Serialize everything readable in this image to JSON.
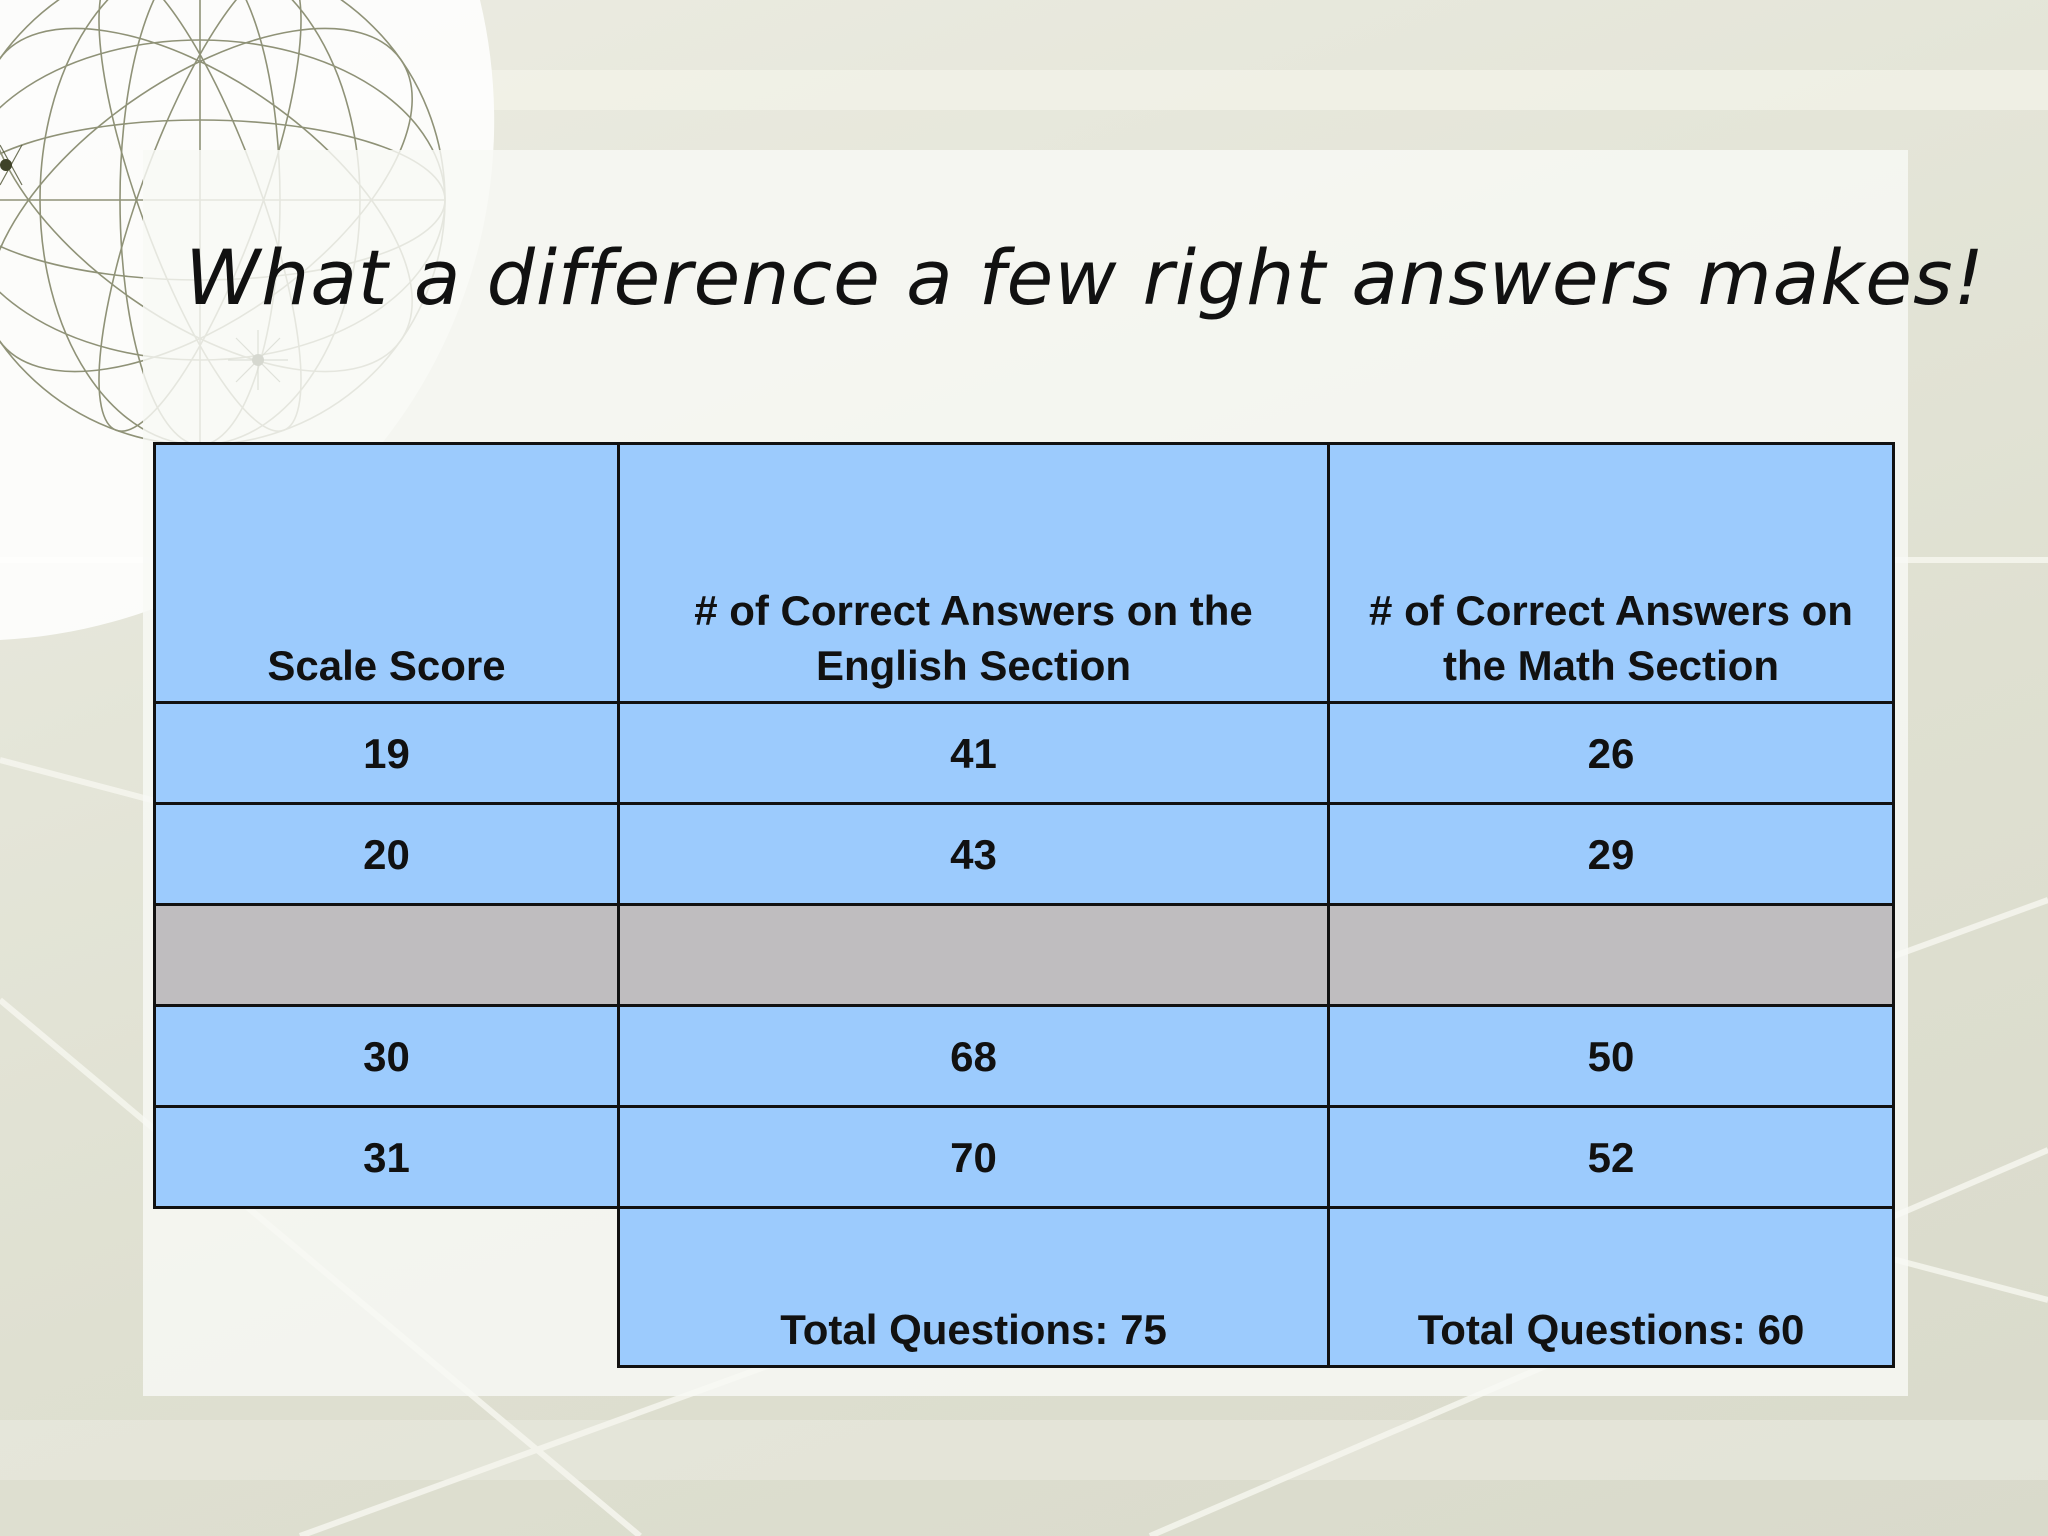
{
  "slide": {
    "title": "What a difference a few right answers makes!"
  },
  "table": {
    "headers": [
      "Scale Score",
      "# of Correct Answers on the English Section",
      "# of Correct Answers on the Math Section"
    ],
    "rows": [
      [
        "19",
        "41",
        "26"
      ],
      [
        "20",
        "43",
        "29"
      ],
      [
        "",
        "",
        ""
      ],
      [
        "30",
        "68",
        "50"
      ],
      [
        "31",
        "70",
        "52"
      ]
    ],
    "totals": [
      "Total Questions: 75",
      "Total Questions: 60"
    ],
    "colors": {
      "cell": "#9ccbfd",
      "gap_row": "#bfbdbf",
      "border": "#111111"
    }
  }
}
